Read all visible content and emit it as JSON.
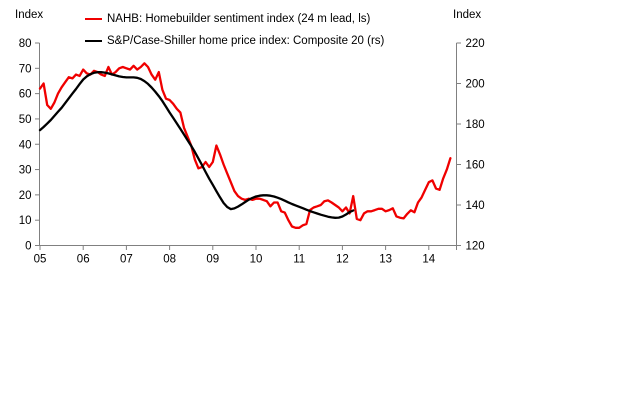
{
  "chart_data": {
    "type": "line",
    "left_axis": {
      "title": "Index",
      "min": 0,
      "max": 80,
      "ticks": [
        0,
        10,
        20,
        30,
        40,
        50,
        60,
        70,
        80
      ]
    },
    "right_axis": {
      "title": "Index",
      "min": 120,
      "max": 220,
      "ticks": [
        120,
        140,
        160,
        180,
        200,
        220
      ]
    },
    "x_axis": {
      "tick_labels": [
        "05",
        "06",
        "07",
        "08",
        "09",
        "10",
        "11",
        "12",
        "13",
        "14"
      ]
    },
    "grid": "off",
    "legend_position": "top-left",
    "axis_color": "#808080",
    "series": [
      {
        "name": "NAHB: Homebuilder sentiment index (24 m lead, ls)",
        "color": "#f00000",
        "axis": "left",
        "start_year": 2005,
        "points_per_year": 12,
        "values": [
          62,
          64,
          55.5,
          54,
          56.5,
          60,
          62.5,
          64.5,
          66.5,
          66,
          67.5,
          67,
          69.5,
          68,
          67.5,
          69,
          68.5,
          67.5,
          67,
          70.5,
          67.5,
          68.5,
          70,
          70.5,
          70,
          69.5,
          71,
          69.5,
          70.5,
          72,
          70.5,
          67.5,
          65.5,
          68.5,
          61.5,
          58,
          57.5,
          56,
          54,
          52.5,
          46.5,
          43,
          39.5,
          34,
          30.5,
          31,
          33,
          31,
          33,
          39.5,
          36,
          32,
          28.5,
          25,
          21.5,
          19.5,
          18.5,
          18,
          18.5,
          18,
          18.5,
          18.5,
          18,
          17.5,
          15.5,
          17,
          17,
          13.5,
          13,
          10,
          7.5,
          7,
          7,
          8,
          8.5,
          14,
          15,
          15.5,
          16,
          17.5,
          17.8,
          17,
          16,
          15,
          13.5,
          15,
          12.7,
          19.5,
          10.5,
          10,
          12.7,
          13.5,
          13.5,
          14,
          14.5,
          14.5,
          13.5,
          14,
          14.7,
          11.5,
          11,
          10.7,
          12.5,
          13.9,
          13.1,
          17,
          19,
          22,
          25,
          25.7,
          22.5,
          22,
          26.5,
          30,
          34.5
        ]
      },
      {
        "name": "S&P/Case-Shiller home price index: Composite 20 (rs)",
        "color": "#000000",
        "axis": "right",
        "start_year": 2005,
        "points_per_year": 12,
        "values": [
          177,
          178.5,
          180.2,
          182,
          184,
          186,
          188,
          190.3,
          192.7,
          195,
          197.3,
          199.7,
          202,
          203.5,
          204.6,
          205.3,
          205.6,
          205.6,
          205.4,
          205,
          204.5,
          204,
          203.5,
          203.2,
          203,
          203,
          203,
          202.8,
          202.2,
          201.2,
          199.8,
          198,
          196,
          193.8,
          191.3,
          188.5,
          185.7,
          183,
          180.3,
          177.6,
          174.8,
          172,
          169.2,
          166.2,
          163,
          159.7,
          156.3,
          153,
          150,
          146.8,
          143.8,
          141,
          139,
          138,
          138.3,
          139.2,
          140.3,
          141.5,
          142.6,
          143.5,
          144.2,
          144.6,
          144.8,
          144.8,
          144.6,
          144.2,
          143.6,
          142.9,
          142.1,
          141.3,
          140.5,
          139.8,
          139.1,
          138.4,
          137.7,
          137,
          136.4,
          135.8,
          135.2,
          134.7,
          134.2,
          133.9,
          133.7,
          133.8,
          134.3,
          135.3,
          136.5,
          137.3
        ]
      }
    ]
  }
}
